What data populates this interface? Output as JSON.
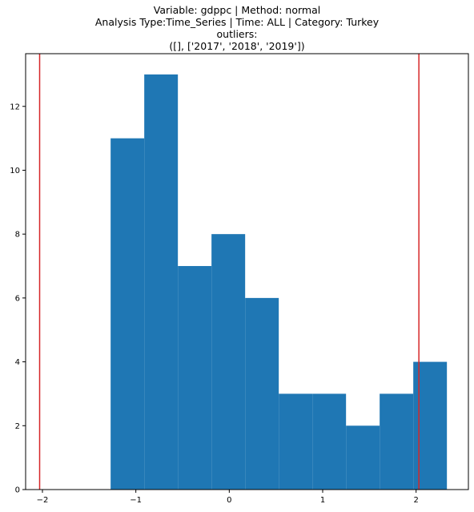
{
  "chart_data": {
    "type": "bar",
    "title_lines": [
      "Variable: gdppc | Method: normal",
      "Analysis Type:Time_Series | Time: ALL | Category: Turkey",
      "outliers:",
      "([], ['2017', '2018', '2019'])"
    ],
    "xlabel": "",
    "ylabel": "",
    "xlim": [
      -2.18,
      2.56
    ],
    "ylim": [
      0,
      13.65
    ],
    "xticks": [
      -2,
      -1,
      0,
      1,
      2
    ],
    "xtick_labels": [
      "−2",
      "−1",
      "0",
      "1",
      "2"
    ],
    "yticks": [
      0,
      2,
      4,
      6,
      8,
      10,
      12
    ],
    "ytick_labels": [
      "0",
      "2",
      "4",
      "6",
      "8",
      "10",
      "12"
    ],
    "bin_edges": [
      -1.27,
      -0.91,
      -0.55,
      -0.19,
      0.17,
      0.53,
      0.89,
      1.25,
      1.61,
      1.97,
      2.33
    ],
    "counts": [
      11,
      13,
      7,
      8,
      6,
      3,
      3,
      2,
      3,
      4
    ],
    "vertical_lines": [
      -2.03,
      2.03
    ],
    "grid": false,
    "colors": {
      "bar": "#1f77b4",
      "vline": "#d62728",
      "axis": "#000000"
    }
  }
}
